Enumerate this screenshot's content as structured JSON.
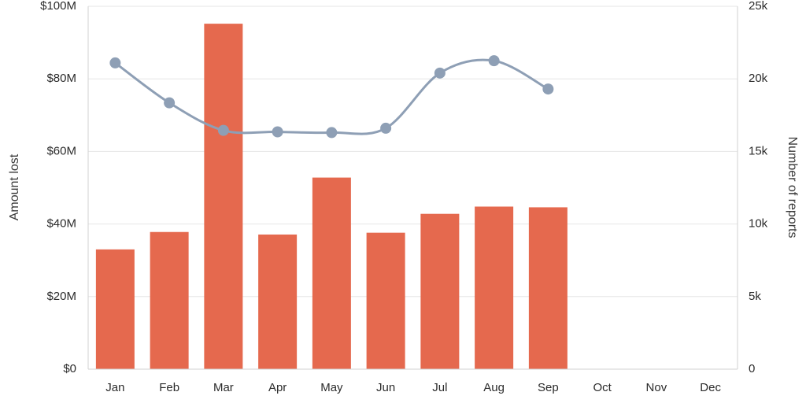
{
  "chart_data": {
    "type": "bar",
    "categories": [
      "Jan",
      "Feb",
      "Mar",
      "Apr",
      "May",
      "Jun",
      "Jul",
      "Aug",
      "Sep",
      "Oct",
      "Nov",
      "Dec"
    ],
    "series": [
      {
        "type": "bar",
        "axis": "left",
        "color": "#e5694e",
        "values": [
          33,
          37.8,
          95.2,
          37.1,
          52.8,
          37.6,
          42.8,
          44.8,
          44.6,
          null,
          null,
          null
        ]
      },
      {
        "type": "line",
        "axis": "right",
        "color": "#8e9fb5",
        "smooth": true,
        "values": [
          21100,
          18350,
          16450,
          16350,
          16300,
          16600,
          20400,
          21250,
          19300,
          null,
          null,
          null
        ]
      }
    ],
    "y_left": {
      "label": "Amount lost",
      "ylim": [
        0,
        100
      ],
      "ticks": [
        0,
        20,
        40,
        60,
        80,
        100
      ],
      "tick_labels": [
        "$0",
        "$20M",
        "$40M",
        "$60M",
        "$80M",
        "$100M"
      ]
    },
    "y_right": {
      "label": "Number of reports",
      "ylim": [
        0,
        25000
      ],
      "ticks": [
        0,
        5000,
        10000,
        15000,
        20000,
        25000
      ],
      "tick_labels": [
        "0",
        "5k",
        "10k",
        "15k",
        "20k",
        "25k"
      ]
    },
    "grid": true,
    "legend": "none"
  }
}
